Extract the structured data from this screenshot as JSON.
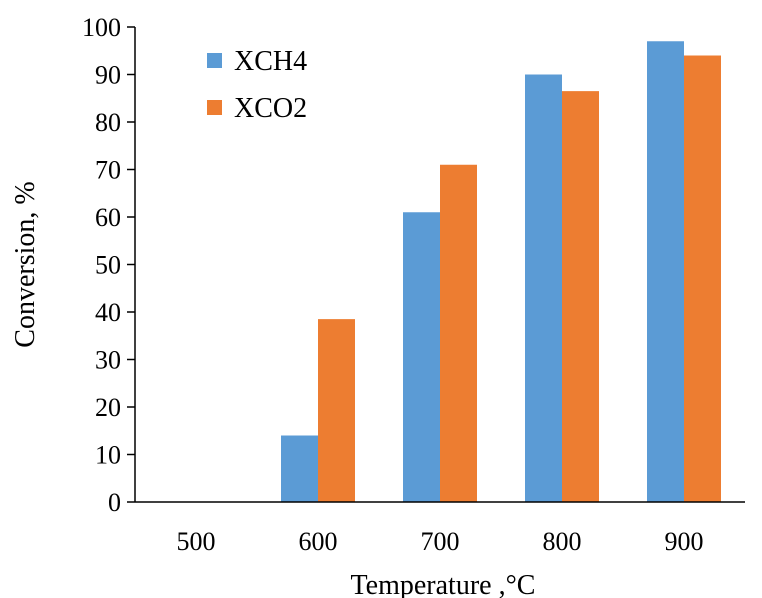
{
  "chart_data": {
    "type": "bar",
    "categories": [
      "500",
      "600",
      "700",
      "800",
      "900"
    ],
    "series": [
      {
        "name": "XCH4",
        "values": [
          0,
          14,
          61,
          90,
          97
        ],
        "color": "#5B9BD5"
      },
      {
        "name": "XCO2",
        "values": [
          0,
          38.5,
          71,
          86.5,
          94
        ],
        "color": "#ED7D31"
      }
    ],
    "xlabel": "Temperature ,°C",
    "ylabel": "Conversion,  %",
    "ylim": [
      0,
      100
    ],
    "yticks": [
      0,
      10,
      20,
      30,
      40,
      50,
      60,
      70,
      80,
      90,
      100
    ],
    "grid": false,
    "legend_position": "top-left"
  }
}
